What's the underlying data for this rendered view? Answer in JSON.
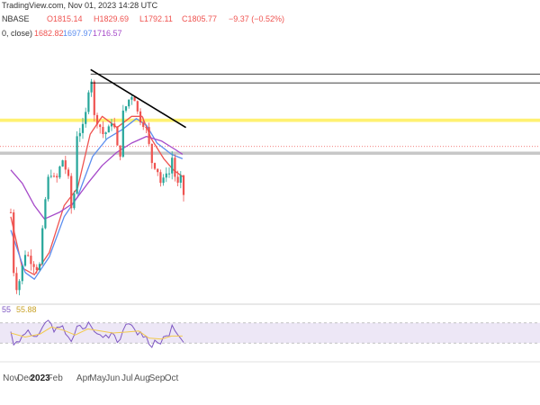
{
  "header": {
    "source": "TradingView.com, Nov 01, 2023 14:28 UTC",
    "ohlc_prefix": "NBASE",
    "open": "O1815.14",
    "high": "H1829.69",
    "low": "L1792.11",
    "close": "C1805.77",
    "change": "−9.37 (−0.52%)",
    "ma_prefix": "0, close)",
    "ma1": "1682.82",
    "ma2": "1697.97",
    "ma3": "1716.57"
  },
  "rsi_header": {
    "left_value": "55",
    "rsi_value": "55.88"
  },
  "colors": {
    "up": "#26a69a",
    "down": "#ef5350",
    "ma_red": "#ef5350",
    "ma_blue": "#5b8def",
    "ma_purple": "#a64ac9",
    "rsi_line": "#7e57c2",
    "rsi_ma": "#f2c94c",
    "rsi_band": "#ede7f6",
    "support_zone": "#ffee58",
    "resistance_zone": "#bdbdbd",
    "trendline": "#000000"
  },
  "chart_data": {
    "type": "candlestick",
    "x_axis": {
      "ticks": [
        {
          "label": "Nov",
          "date": "2022-11-01"
        },
        {
          "label": "Dec",
          "date": "2022-12-01"
        },
        {
          "label": "2023",
          "date": "2023-01-01",
          "bold": true
        },
        {
          "label": "Feb",
          "date": "2023-02-01"
        },
        {
          "label": "Apr",
          "date": "2023-04-01"
        },
        {
          "label": "May",
          "date": "2023-05-01"
        },
        {
          "label": "Jun",
          "date": "2023-06-01"
        },
        {
          "label": "Jul",
          "date": "2023-07-01"
        },
        {
          "label": "Aug",
          "date": "2023-08-01"
        },
        {
          "label": "Sep",
          "date": "2023-09-01"
        },
        {
          "label": "Oct",
          "date": "2023-10-01"
        }
      ]
    },
    "price_range": [
      1050,
      2200
    ],
    "candle_key": [
      [
        "2022-11-01",
        1450
      ],
      [
        "2022-11-09",
        1100
      ],
      [
        "2022-11-20",
        1150
      ],
      [
        "2022-12-01",
        1270
      ],
      [
        "2022-12-15",
        1230
      ],
      [
        "2022-12-30",
        1190
      ],
      [
        "2023-01-14",
        1560
      ],
      [
        "2023-01-22",
        1640
      ],
      [
        "2023-02-02",
        1580
      ],
      [
        "2023-02-16",
        1690
      ],
      [
        "2023-02-28",
        1610
      ],
      [
        "2023-03-10",
        1400
      ],
      [
        "2023-03-18",
        1800
      ],
      [
        "2023-04-01",
        1830
      ],
      [
        "2023-04-08",
        1920
      ],
      [
        "2023-04-16",
        2110
      ],
      [
        "2023-04-22",
        1880
      ],
      [
        "2023-05-01",
        1860
      ],
      [
        "2023-05-12",
        1800
      ],
      [
        "2023-05-24",
        1820
      ],
      [
        "2023-06-01",
        1880
      ],
      [
        "2023-06-10",
        1740
      ],
      [
        "2023-06-16",
        1700
      ],
      [
        "2023-06-22",
        1890
      ],
      [
        "2023-07-03",
        1950
      ],
      [
        "2023-07-14",
        1990
      ],
      [
        "2023-07-24",
        1880
      ],
      [
        "2023-08-08",
        1840
      ],
      [
        "2023-08-16",
        1740
      ],
      [
        "2023-08-20",
        1680
      ],
      [
        "2023-09-01",
        1650
      ],
      [
        "2023-09-11",
        1560
      ],
      [
        "2023-09-20",
        1640
      ],
      [
        "2023-09-28",
        1620
      ],
      [
        "2023-10-02",
        1700
      ],
      [
        "2023-10-12",
        1560
      ],
      [
        "2023-10-20",
        1600
      ],
      [
        "2023-10-24",
        1530
      ]
    ],
    "moving_averages": [
      {
        "name": "1682.82",
        "color": "#ef5350",
        "points": [
          [
            "2022-11-01",
            1430
          ],
          [
            "2022-11-25",
            1200
          ],
          [
            "2022-12-20",
            1170
          ],
          [
            "2023-01-20",
            1270
          ],
          [
            "2023-02-20",
            1480
          ],
          [
            "2023-03-20",
            1560
          ],
          [
            "2023-04-15",
            1800
          ],
          [
            "2023-05-10",
            1880
          ],
          [
            "2023-06-10",
            1830
          ],
          [
            "2023-07-10",
            1880
          ],
          [
            "2023-08-01",
            1880
          ],
          [
            "2023-08-20",
            1780
          ],
          [
            "2023-09-15",
            1690
          ],
          [
            "2023-10-05",
            1640
          ],
          [
            "2023-10-24",
            1610
          ]
        ]
      },
      {
        "name": "1697.97",
        "color": "#5b8def",
        "points": [
          [
            "2022-11-01",
            1370
          ],
          [
            "2022-12-01",
            1180
          ],
          [
            "2022-12-20",
            1150
          ],
          [
            "2023-01-20",
            1250
          ],
          [
            "2023-02-20",
            1430
          ],
          [
            "2023-03-20",
            1520
          ],
          [
            "2023-04-20",
            1700
          ],
          [
            "2023-05-20",
            1780
          ],
          [
            "2023-06-20",
            1820
          ],
          [
            "2023-07-20",
            1870
          ],
          [
            "2023-08-10",
            1840
          ],
          [
            "2023-09-01",
            1760
          ],
          [
            "2023-10-01",
            1710
          ],
          [
            "2023-10-24",
            1690
          ]
        ]
      },
      {
        "name": "1716.57",
        "color": "#a64ac9",
        "points": [
          [
            "2022-11-01",
            1640
          ],
          [
            "2022-11-25",
            1580
          ],
          [
            "2022-12-20",
            1480
          ],
          [
            "2023-01-10",
            1420
          ],
          [
            "2023-02-10",
            1450
          ],
          [
            "2023-03-10",
            1490
          ],
          [
            "2023-04-10",
            1580
          ],
          [
            "2023-05-10",
            1660
          ],
          [
            "2023-06-10",
            1720
          ],
          [
            "2023-07-10",
            1760
          ],
          [
            "2023-08-10",
            1790
          ],
          [
            "2023-09-10",
            1770
          ],
          [
            "2023-10-10",
            1730
          ],
          [
            "2023-10-24",
            1710
          ]
        ]
      }
    ],
    "zones": [
      {
        "name": "support-zone",
        "from": 1855,
        "to": 1870,
        "color": "#ffee58"
      },
      {
        "name": "resistance-zone",
        "from": 1708,
        "to": 1722,
        "color": "#bdbdbd"
      }
    ],
    "dotted_level": 1745,
    "trendline": {
      "from": [
        "2023-04-16",
        2090
      ],
      "to": [
        "2023-10-31",
        1830
      ]
    },
    "horizontal_lines": [
      {
        "from": "2023-04-16",
        "value": 2070
      },
      {
        "from": "2023-04-16",
        "value": 2030
      }
    ],
    "rsi": {
      "range": [
        0,
        100
      ],
      "band": [
        30,
        70
      ],
      "values": [
        [
          "2022-11-01",
          55
        ],
        [
          "2022-11-09",
          22
        ],
        [
          "2022-11-20",
          35
        ],
        [
          "2022-12-01",
          52
        ],
        [
          "2022-12-15",
          46
        ],
        [
          "2022-12-30",
          42
        ],
        [
          "2023-01-14",
          78
        ],
        [
          "2023-01-22",
          68
        ],
        [
          "2023-02-02",
          55
        ],
        [
          "2023-02-16",
          60
        ],
        [
          "2023-02-28",
          47
        ],
        [
          "2023-03-10",
          30
        ],
        [
          "2023-03-18",
          62
        ],
        [
          "2023-04-01",
          60
        ],
        [
          "2023-04-08",
          64
        ],
        [
          "2023-04-16",
          74
        ],
        [
          "2023-04-22",
          50
        ],
        [
          "2023-05-01",
          48
        ],
        [
          "2023-05-12",
          44
        ],
        [
          "2023-05-24",
          47
        ],
        [
          "2023-06-01",
          55
        ],
        [
          "2023-06-10",
          38
        ],
        [
          "2023-06-16",
          36
        ],
        [
          "2023-06-22",
          60
        ],
        [
          "2023-07-03",
          62
        ],
        [
          "2023-07-14",
          66
        ],
        [
          "2023-07-24",
          48
        ],
        [
          "2023-08-08",
          45
        ],
        [
          "2023-08-16",
          25
        ],
        [
          "2023-08-20",
          22
        ],
        [
          "2023-09-01",
          38
        ],
        [
          "2023-09-11",
          33
        ],
        [
          "2023-09-20",
          42
        ],
        [
          "2023-09-28",
          40
        ],
        [
          "2023-10-02",
          65
        ],
        [
          "2023-10-12",
          38
        ],
        [
          "2023-10-20",
          45
        ],
        [
          "2023-10-24",
          35
        ]
      ],
      "ma": [
        [
          "2022-11-01",
          50
        ],
        [
          "2022-12-01",
          42
        ],
        [
          "2023-01-01",
          48
        ],
        [
          "2023-01-25",
          62
        ],
        [
          "2023-02-20",
          55
        ],
        [
          "2023-03-15",
          46
        ],
        [
          "2023-04-10",
          58
        ],
        [
          "2023-05-01",
          55
        ],
        [
          "2023-06-01",
          50
        ],
        [
          "2023-07-01",
          52
        ],
        [
          "2023-07-25",
          54
        ],
        [
          "2023-08-15",
          40
        ],
        [
          "2023-09-10",
          38
        ],
        [
          "2023-10-01",
          44
        ],
        [
          "2023-10-24",
          44
        ]
      ]
    }
  }
}
